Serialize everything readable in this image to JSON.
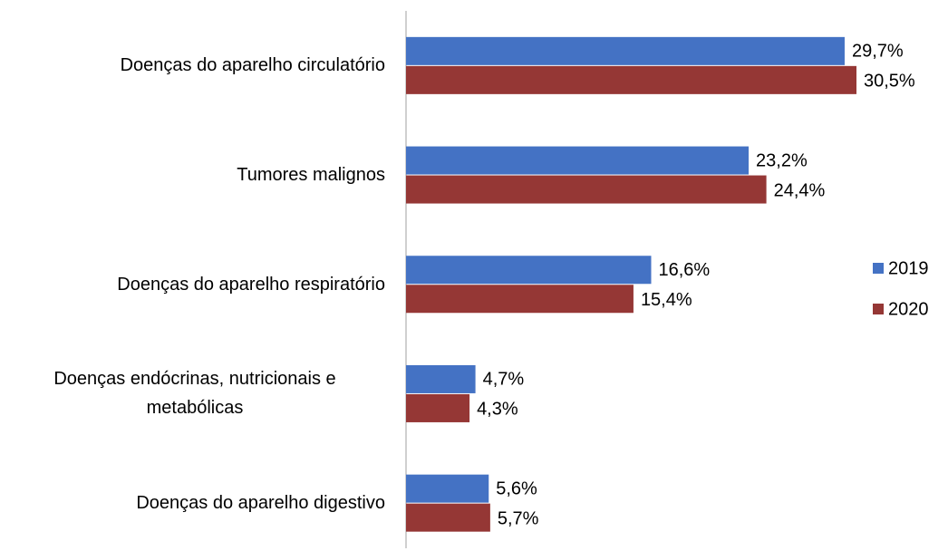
{
  "chart_data": {
    "type": "hbar",
    "categories": [
      "Doenças do aparelho circulatório",
      "Tumores malignos",
      "Doenças do aparelho respiratório",
      "Doenças endócrinas, nutricionais e metabólicas",
      "Doenças do aparelho digestivo"
    ],
    "series": [
      {
        "name": "2019",
        "color": "#4472c4",
        "values": [
          29.7,
          23.2,
          16.6,
          4.7,
          5.6
        ],
        "value_labels": [
          "29,7%",
          "23,2%",
          "16,6%",
          "4,7%",
          "5,6%"
        ]
      },
      {
        "name": "2020",
        "color": "#953735",
        "values": [
          30.5,
          24.4,
          15.4,
          4.3,
          5.7
        ],
        "value_labels": [
          "30,5%",
          "24,4%",
          "15,4%",
          "4,3%",
          "5,7%"
        ]
      }
    ],
    "legend": "right"
  }
}
